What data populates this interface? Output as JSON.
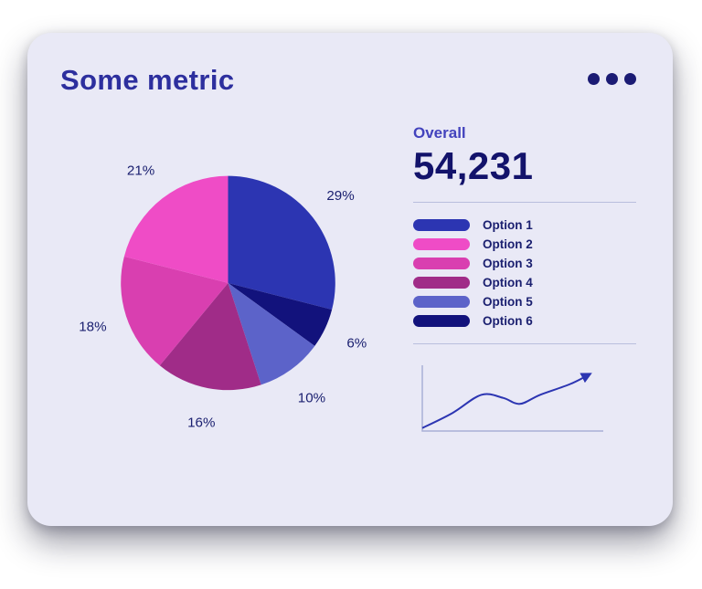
{
  "card": {
    "title": "Some metric",
    "menu_icon": "ellipsis-menu-icon"
  },
  "overall": {
    "label": "Overall",
    "value": "54,231"
  },
  "legend": {
    "items": [
      {
        "label": "Option 1",
        "color": "#2c35b2"
      },
      {
        "label": "Option 2",
        "color": "#ef4cc6"
      },
      {
        "label": "Option 3",
        "color": "#d93fb0"
      },
      {
        "label": "Option 4",
        "color": "#a02c88"
      },
      {
        "label": "Option 5",
        "color": "#5c63c9"
      },
      {
        "label": "Option 6",
        "color": "#12127c"
      }
    ]
  },
  "chart_data": [
    {
      "type": "pie",
      "title": "Some metric",
      "unit": "%",
      "start_angle_deg": 0,
      "direction": "clockwise",
      "slices": [
        {
          "label": "Option 1",
          "value": 29,
          "color": "#2c35b2"
        },
        {
          "label": "Option 6",
          "value": 6,
          "color": "#12127c"
        },
        {
          "label": "Option 5",
          "value": 10,
          "color": "#5c63c9"
        },
        {
          "label": "Option 4",
          "value": 16,
          "color": "#a02c88"
        },
        {
          "label": "Option 3",
          "value": 18,
          "color": "#d93fb0"
        },
        {
          "label": "Option 2",
          "value": 21,
          "color": "#ef4cc6"
        }
      ],
      "legend_position": "right",
      "labels_outside": true
    },
    {
      "type": "line",
      "title": "trend sparkline",
      "x": [
        0,
        0.18,
        0.35,
        0.48,
        0.58,
        0.7,
        0.88,
        1
      ],
      "values": [
        0.05,
        0.3,
        0.6,
        0.55,
        0.45,
        0.6,
        0.78,
        0.95
      ],
      "line_color": "#2c35b2",
      "axis_color": "#a9b0d6",
      "arrow_end": true,
      "grid": false,
      "tick_labels": "none"
    }
  ],
  "colors": {
    "card_bg": "#e9e9f6",
    "title": "#2d2f9e",
    "overall_label": "#4343bd",
    "overall_value": "#13136b",
    "divider": "#b9bedd",
    "menu_dots": "#1b1b74",
    "text": "#1b2070"
  }
}
